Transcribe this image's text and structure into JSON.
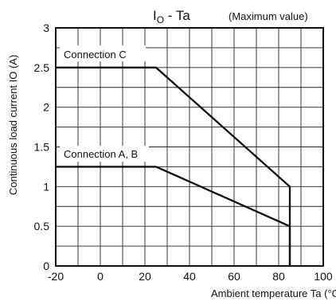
{
  "chart_data": {
    "type": "line",
    "title_main": "I",
    "title_sub": "O",
    "title_rest": " - Ta",
    "subtitle": "(Maximum value)",
    "xlabel": "Ambient temperature Ta (°C)",
    "ylabel": "Continuous load current IO (A)",
    "xlim": [
      -20,
      100
    ],
    "ylim": [
      0,
      3
    ],
    "xticks": [
      -20,
      0,
      20,
      40,
      60,
      80,
      100
    ],
    "yticks": [
      0,
      0.5,
      1,
      1.5,
      2,
      2.5,
      3
    ],
    "ytick_labels": [
      "0",
      "0.5",
      "1",
      "1.5",
      "2",
      "2.5",
      "3"
    ],
    "grid": true,
    "grid_x_step": 10,
    "grid_y_step": 0.25,
    "series": [
      {
        "name": "Connection C",
        "x": [
          -20,
          25,
          85,
          85
        ],
        "y": [
          2.5,
          2.5,
          1.0,
          0
        ]
      },
      {
        "name": "Connection A, B",
        "x": [
          -20,
          25,
          85,
          85
        ],
        "y": [
          1.25,
          1.25,
          0.5,
          0
        ]
      }
    ]
  }
}
